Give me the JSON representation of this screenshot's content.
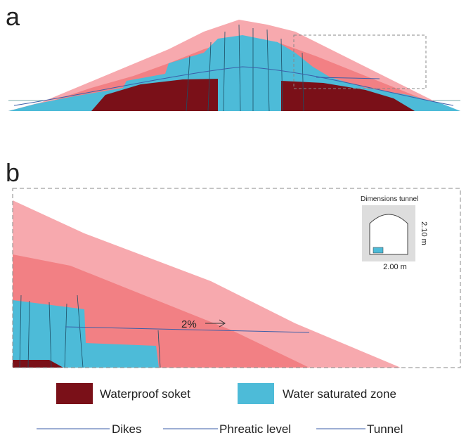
{
  "panels": {
    "a": {
      "label": "a"
    },
    "b": {
      "label": "b",
      "slope": "2%",
      "inset": {
        "title": "Dimensions tunnel",
        "height": "2.10 m",
        "width": "2.00 m"
      }
    }
  },
  "legend": {
    "areas": [
      "Waterproof soket",
      "Water saturated zone"
    ],
    "lines": [
      "Dikes",
      "Phreatic level",
      "Tunnel"
    ]
  }
}
